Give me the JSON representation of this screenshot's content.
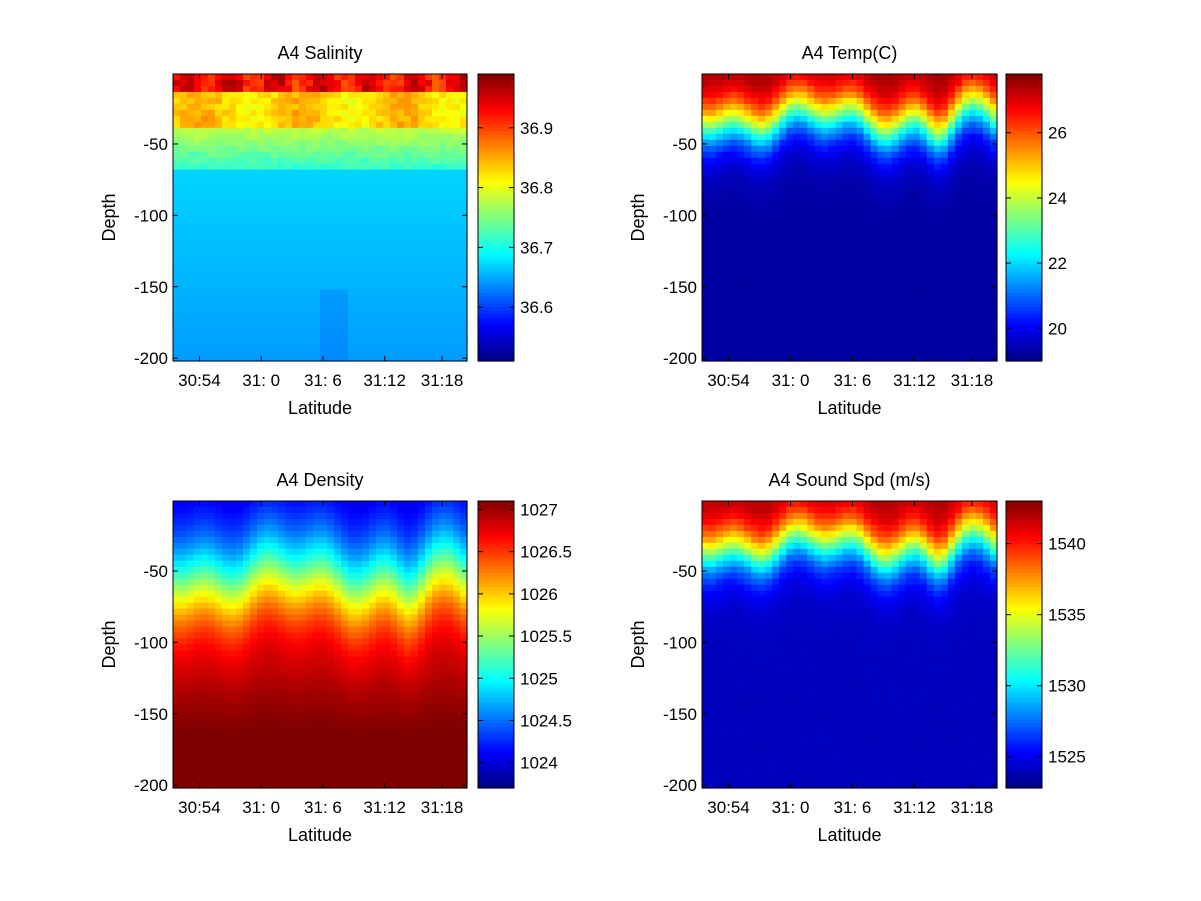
{
  "chart_data": [
    {
      "type": "heatmap",
      "title": "A4 Salinity",
      "xlabel": "Latitude",
      "ylabel": "Depth",
      "x_ticks": [
        "30:54",
        "31: 0",
        "31: 6",
        "31:12",
        "31:18"
      ],
      "y_ticks": [
        -50,
        -100,
        -150,
        -200
      ],
      "ylim": [
        -202,
        -1
      ],
      "colorbar": {
        "ticks": [
          36.6,
          36.7,
          36.8,
          36.9
        ],
        "range": [
          36.51,
          36.99
        ]
      },
      "field": {
        "kind": "salinity",
        "surface": 36.93,
        "deep": 36.67
      }
    },
    {
      "type": "heatmap",
      "title": "A4 Temp(C)",
      "xlabel": "Latitude",
      "ylabel": "Depth",
      "x_ticks": [
        "30:54",
        "31: 0",
        "31: 6",
        "31:12",
        "31:18"
      ],
      "y_ticks": [
        -50,
        -100,
        -150,
        -200
      ],
      "ylim": [
        -202,
        -1
      ],
      "colorbar": {
        "ticks": [
          20,
          22,
          24,
          26
        ],
        "range": [
          19.0,
          27.8
        ]
      },
      "field": {
        "kind": "temperature",
        "surface": 27.7,
        "deep": 19.3
      }
    },
    {
      "type": "heatmap",
      "title": "A4 Density",
      "xlabel": "Latitude",
      "ylabel": "Depth",
      "x_ticks": [
        "30:54",
        "31: 0",
        "31: 6",
        "31:12",
        "31:18"
      ],
      "y_ticks": [
        -50,
        -100,
        -150,
        -200
      ],
      "ylim": [
        -202,
        -1
      ],
      "colorbar": {
        "ticks": [
          "1024",
          "1024.5",
          "1025",
          "1025.5",
          "1026",
          "1026.5",
          "1027"
        ],
        "range": [
          1023.7,
          1027.1
        ]
      },
      "field": {
        "kind": "density",
        "surface": 1023.9,
        "deep": 1027.0
      }
    },
    {
      "type": "heatmap",
      "title": "A4 Sound Spd (m/s)",
      "xlabel": "Latitude",
      "ylabel": "Depth",
      "x_ticks": [
        "30:54",
        "31: 0",
        "31: 6",
        "31:12",
        "31:18"
      ],
      "y_ticks": [
        -50,
        -100,
        -150,
        -200
      ],
      "ylim": [
        -202,
        -1
      ],
      "colorbar": {
        "ticks": [
          1525,
          1530,
          1535,
          1540
        ],
        "range": [
          1522.8,
          1543.0
        ]
      },
      "field": {
        "kind": "sound",
        "surface": 1542.5,
        "deep": 1524.0
      }
    }
  ]
}
